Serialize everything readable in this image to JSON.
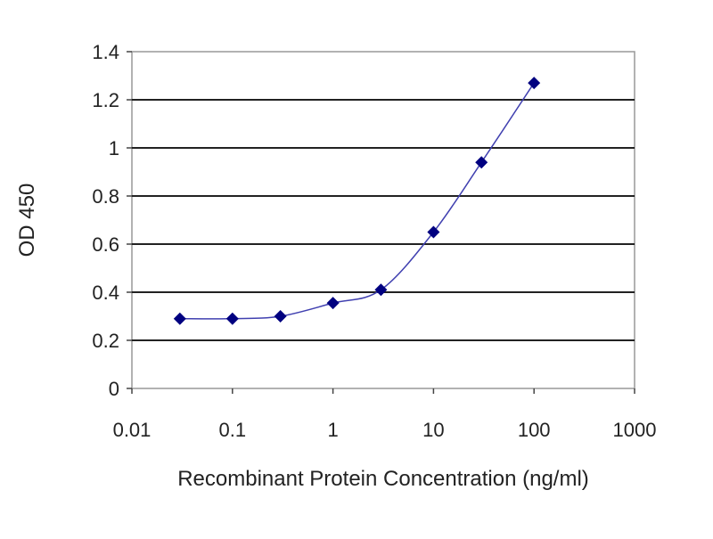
{
  "chart_data": {
    "type": "line",
    "title": "",
    "xlabel": "Recombinant Protein Concentration (ng/ml)",
    "ylabel": "OD 450",
    "xscale": "log",
    "xlim": [
      0.01,
      1000
    ],
    "ylim": [
      0,
      1.4
    ],
    "xticks": [
      "0.01",
      "0.1",
      "1",
      "10",
      "100",
      "1000"
    ],
    "yticks": [
      "0",
      "0.2",
      "0.4",
      "0.6",
      "0.8",
      "1",
      "1.2",
      "1.4"
    ],
    "grid": "horizontal",
    "legend": "none",
    "series": [
      {
        "x": [
          0.03,
          0.1,
          0.3,
          1,
          3,
          10,
          30,
          100
        ],
        "y": [
          0.29,
          0.29,
          0.3,
          0.355,
          0.41,
          0.65,
          0.94,
          1.27
        ],
        "line_color": "#4040b0",
        "marker_color": "#000080",
        "marker": "diamond"
      }
    ]
  }
}
